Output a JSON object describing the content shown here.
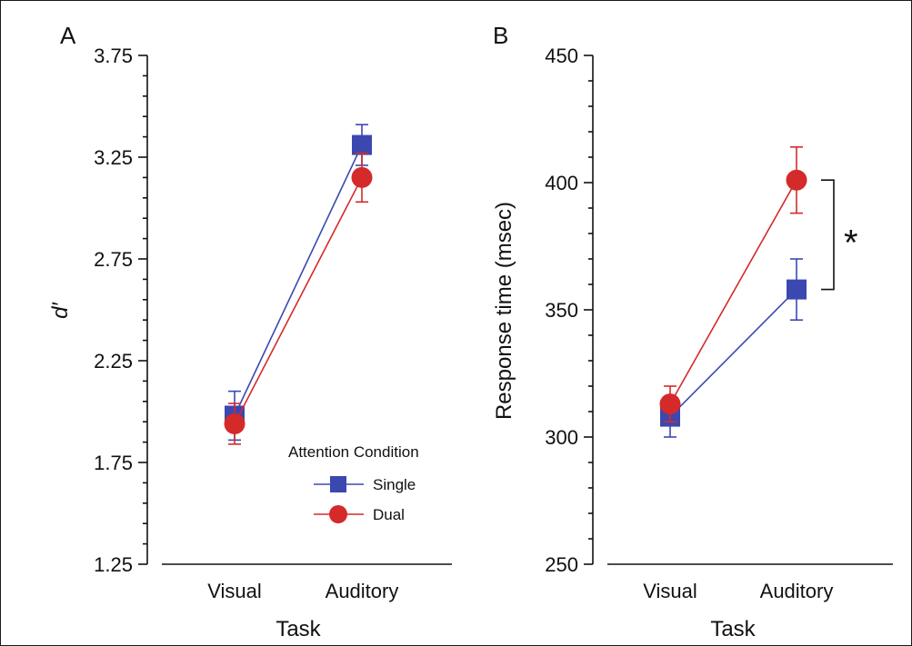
{
  "figure": {
    "panels": [
      "A",
      "B"
    ],
    "legend": {
      "title": "Attention Condition",
      "items": [
        {
          "label": "Single",
          "marker": "square",
          "color": "#3b48b0"
        },
        {
          "label": "Dual",
          "marker": "circle",
          "color": "#d42a2a"
        }
      ]
    },
    "significance_marker": "*"
  },
  "chart_data": [
    {
      "panel": "A",
      "type": "line",
      "xlabel": "Task",
      "ylabel": "d′",
      "categories": [
        "Visual",
        "Auditory"
      ],
      "ylim": [
        1.25,
        3.75
      ],
      "yticks": [
        "1.25",
        "1.75",
        "2.25",
        "2.75",
        "3.25",
        "3.75"
      ],
      "series": [
        {
          "name": "Single",
          "values": [
            1.98,
            3.31
          ],
          "err": [
            0.12,
            0.1
          ],
          "color": "#3b48b0",
          "marker": "square"
        },
        {
          "name": "Dual",
          "values": [
            1.94,
            3.15
          ],
          "err": [
            0.1,
            0.12
          ],
          "color": "#d42a2a",
          "marker": "circle"
        }
      ]
    },
    {
      "panel": "B",
      "type": "line",
      "xlabel": "Task",
      "ylabel": "Response time (msec)",
      "categories": [
        "Visual",
        "Auditory"
      ],
      "ylim": [
        250,
        450
      ],
      "yticks": [
        "250",
        "300",
        "350",
        "400",
        "450"
      ],
      "series": [
        {
          "name": "Single",
          "values": [
            308,
            358
          ],
          "err": [
            8,
            12
          ],
          "color": "#3b48b0",
          "marker": "square"
        },
        {
          "name": "Dual",
          "values": [
            313,
            401
          ],
          "err": [
            7,
            13
          ],
          "color": "#d42a2a",
          "marker": "circle"
        }
      ],
      "significance": {
        "between": [
          "Single",
          "Dual"
        ],
        "category": "Auditory",
        "label": "*"
      }
    }
  ]
}
